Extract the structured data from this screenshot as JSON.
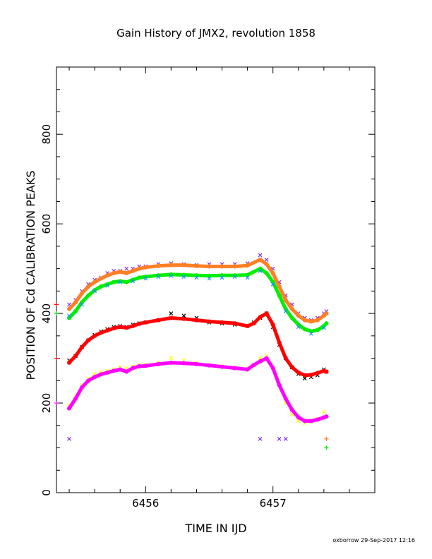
{
  "chart_data": {
    "type": "scatter",
    "title": "Gain History of JMX2, revolution 1858",
    "xlabel": "TIME IN IJD",
    "ylabel": "POSITION OF Cd CALIBRATION PEAKS",
    "xlim": [
      6455.3,
      6457.8
    ],
    "ylim": [
      0,
      950
    ],
    "x_ticks": [
      6456,
      6457
    ],
    "y_ticks": [
      0,
      200,
      400,
      600,
      800
    ],
    "grid": false,
    "footer": "oxborrow 29-Sep-2017 12:16",
    "colors": {
      "purple": "#8a2be2",
      "orange": "#ff7f24",
      "green": "#00ee00",
      "blue": "#1e90ff",
      "black": "#000000",
      "red": "#ff0000",
      "yellow": "#ffff00",
      "magenta": "#ff00ff"
    },
    "series": [
      {
        "color_key": "purple",
        "marker": "x",
        "points": [
          [
            6455.4,
            420
          ],
          [
            6455.45,
            430
          ],
          [
            6455.5,
            450
          ],
          [
            6455.55,
            465
          ],
          [
            6455.6,
            475
          ],
          [
            6455.65,
            480
          ],
          [
            6455.7,
            490
          ],
          [
            6455.75,
            495
          ],
          [
            6455.8,
            495
          ],
          [
            6455.85,
            500
          ],
          [
            6455.9,
            500
          ],
          [
            6455.95,
            505
          ],
          [
            6456.0,
            505
          ],
          [
            6456.1,
            510
          ],
          [
            6456.2,
            512
          ],
          [
            6456.3,
            510
          ],
          [
            6456.4,
            508
          ],
          [
            6456.5,
            510
          ],
          [
            6456.6,
            510
          ],
          [
            6456.7,
            510
          ],
          [
            6456.8,
            512
          ],
          [
            6456.9,
            530
          ],
          [
            6456.95,
            520
          ],
          [
            6457.0,
            500
          ],
          [
            6457.05,
            470
          ],
          [
            6457.1,
            440
          ],
          [
            6457.15,
            420
          ],
          [
            6457.2,
            400
          ],
          [
            6457.25,
            390
          ],
          [
            6457.3,
            385
          ],
          [
            6457.35,
            390
          ],
          [
            6457.4,
            400
          ],
          [
            6457.42,
            405
          ],
          [
            6455.4,
            120
          ],
          [
            6456.9,
            120
          ],
          [
            6457.05,
            120
          ],
          [
            6457.1,
            120
          ]
        ]
      },
      {
        "color_key": "orange",
        "marker": "line",
        "points": [
          [
            6455.4,
            410
          ],
          [
            6455.45,
            425
          ],
          [
            6455.5,
            445
          ],
          [
            6455.55,
            460
          ],
          [
            6455.6,
            470
          ],
          [
            6455.65,
            478
          ],
          [
            6455.7,
            485
          ],
          [
            6455.75,
            490
          ],
          [
            6455.8,
            493
          ],
          [
            6455.85,
            490
          ],
          [
            6455.9,
            495
          ],
          [
            6455.95,
            500
          ],
          [
            6456.0,
            503
          ],
          [
            6456.1,
            506
          ],
          [
            6456.2,
            508
          ],
          [
            6456.3,
            508
          ],
          [
            6456.4,
            506
          ],
          [
            6456.5,
            505
          ],
          [
            6456.6,
            505
          ],
          [
            6456.7,
            505
          ],
          [
            6456.8,
            507
          ],
          [
            6456.9,
            520
          ],
          [
            6456.95,
            510
          ],
          [
            6457.0,
            490
          ],
          [
            6457.05,
            460
          ],
          [
            6457.1,
            430
          ],
          [
            6457.15,
            410
          ],
          [
            6457.2,
            395
          ],
          [
            6457.25,
            385
          ],
          [
            6457.3,
            382
          ],
          [
            6457.35,
            385
          ],
          [
            6457.4,
            395
          ],
          [
            6457.42,
            400
          ]
        ]
      },
      {
        "color_key": "green",
        "marker": "line",
        "points": [
          [
            6455.4,
            390
          ],
          [
            6455.45,
            405
          ],
          [
            6455.5,
            425
          ],
          [
            6455.55,
            440
          ],
          [
            6455.6,
            452
          ],
          [
            6455.65,
            460
          ],
          [
            6455.7,
            465
          ],
          [
            6455.75,
            470
          ],
          [
            6455.8,
            472
          ],
          [
            6455.85,
            470
          ],
          [
            6455.9,
            475
          ],
          [
            6455.95,
            480
          ],
          [
            6456.0,
            482
          ],
          [
            6456.1,
            485
          ],
          [
            6456.2,
            487
          ],
          [
            6456.3,
            486
          ],
          [
            6456.4,
            485
          ],
          [
            6456.5,
            484
          ],
          [
            6456.6,
            485
          ],
          [
            6456.7,
            485
          ],
          [
            6456.8,
            486
          ],
          [
            6456.9,
            500
          ],
          [
            6456.95,
            490
          ],
          [
            6457.0,
            470
          ],
          [
            6457.05,
            440
          ],
          [
            6457.1,
            410
          ],
          [
            6457.15,
            390
          ],
          [
            6457.2,
            375
          ],
          [
            6457.25,
            365
          ],
          [
            6457.3,
            360
          ],
          [
            6457.35,
            363
          ],
          [
            6457.4,
            372
          ],
          [
            6457.42,
            378
          ]
        ]
      },
      {
        "color_key": "blue",
        "marker": "x",
        "points": [
          [
            6455.4,
            395
          ],
          [
            6455.5,
            420
          ],
          [
            6455.6,
            450
          ],
          [
            6455.7,
            462
          ],
          [
            6455.8,
            470
          ],
          [
            6455.9,
            472
          ],
          [
            6456.0,
            478
          ],
          [
            6456.1,
            482
          ],
          [
            6456.2,
            484
          ],
          [
            6456.3,
            482
          ],
          [
            6456.4,
            480
          ],
          [
            6456.5,
            478
          ],
          [
            6456.6,
            480
          ],
          [
            6456.7,
            482
          ],
          [
            6456.8,
            480
          ],
          [
            6456.9,
            495
          ],
          [
            6457.0,
            465
          ],
          [
            6457.1,
            405
          ],
          [
            6457.2,
            370
          ],
          [
            6457.3,
            355
          ],
          [
            6457.4,
            368
          ]
        ]
      },
      {
        "color_key": "black",
        "marker": "x",
        "points": [
          [
            6455.4,
            295
          ],
          [
            6455.45,
            305
          ],
          [
            6455.5,
            325
          ],
          [
            6455.55,
            340
          ],
          [
            6455.6,
            352
          ],
          [
            6455.65,
            360
          ],
          [
            6455.7,
            365
          ],
          [
            6455.75,
            370
          ],
          [
            6455.8,
            372
          ],
          [
            6455.85,
            370
          ],
          [
            6455.9,
            375
          ],
          [
            6455.95,
            378
          ],
          [
            6456.0,
            380
          ],
          [
            6456.1,
            385
          ],
          [
            6456.2,
            400
          ],
          [
            6456.3,
            395
          ],
          [
            6456.4,
            390
          ],
          [
            6456.5,
            380
          ],
          [
            6456.6,
            378
          ],
          [
            6456.7,
            375
          ],
          [
            6456.8,
            372
          ],
          [
            6456.85,
            380
          ],
          [
            6456.9,
            390
          ],
          [
            6456.95,
            400
          ],
          [
            6457.0,
            370
          ],
          [
            6457.05,
            330
          ],
          [
            6457.1,
            300
          ],
          [
            6457.15,
            280
          ],
          [
            6457.2,
            265
          ],
          [
            6457.25,
            255
          ],
          [
            6457.3,
            258
          ],
          [
            6457.35,
            262
          ],
          [
            6457.4,
            275
          ],
          [
            6457.42,
            270
          ]
        ]
      },
      {
        "color_key": "red",
        "marker": "line",
        "points": [
          [
            6455.4,
            290
          ],
          [
            6455.45,
            305
          ],
          [
            6455.5,
            325
          ],
          [
            6455.55,
            340
          ],
          [
            6455.6,
            350
          ],
          [
            6455.65,
            357
          ],
          [
            6455.7,
            362
          ],
          [
            6455.75,
            367
          ],
          [
            6455.8,
            370
          ],
          [
            6455.85,
            368
          ],
          [
            6455.9,
            372
          ],
          [
            6455.95,
            377
          ],
          [
            6456.0,
            380
          ],
          [
            6456.1,
            385
          ],
          [
            6456.2,
            390
          ],
          [
            6456.3,
            388
          ],
          [
            6456.4,
            385
          ],
          [
            6456.5,
            382
          ],
          [
            6456.6,
            380
          ],
          [
            6456.7,
            378
          ],
          [
            6456.8,
            372
          ],
          [
            6456.85,
            378
          ],
          [
            6456.9,
            392
          ],
          [
            6456.95,
            400
          ],
          [
            6457.0,
            375
          ],
          [
            6457.05,
            335
          ],
          [
            6457.1,
            300
          ],
          [
            6457.15,
            280
          ],
          [
            6457.2,
            268
          ],
          [
            6457.25,
            262
          ],
          [
            6457.3,
            263
          ],
          [
            6457.35,
            267
          ],
          [
            6457.4,
            272
          ],
          [
            6457.42,
            270
          ]
        ]
      },
      {
        "color_key": "yellow",
        "marker": "x",
        "points": [
          [
            6455.4,
            195
          ],
          [
            6455.45,
            215
          ],
          [
            6455.5,
            240
          ],
          [
            6455.55,
            255
          ],
          [
            6455.6,
            265
          ],
          [
            6455.65,
            270
          ],
          [
            6455.7,
            272
          ],
          [
            6455.75,
            275
          ],
          [
            6455.8,
            280
          ],
          [
            6455.85,
            278
          ],
          [
            6455.9,
            282
          ],
          [
            6455.95,
            285
          ],
          [
            6456.0,
            285
          ],
          [
            6456.1,
            290
          ],
          [
            6456.2,
            300
          ],
          [
            6456.3,
            295
          ],
          [
            6456.4,
            290
          ],
          [
            6456.5,
            285
          ],
          [
            6456.6,
            282
          ],
          [
            6456.7,
            280
          ],
          [
            6456.8,
            278
          ],
          [
            6456.85,
            285
          ],
          [
            6456.9,
            300
          ],
          [
            6456.95,
            305
          ],
          [
            6457.0,
            280
          ],
          [
            6457.05,
            240
          ],
          [
            6457.1,
            200
          ],
          [
            6457.15,
            175
          ],
          [
            6457.2,
            160
          ],
          [
            6457.25,
            155
          ],
          [
            6457.3,
            158
          ],
          [
            6457.35,
            165
          ],
          [
            6457.4,
            180
          ],
          [
            6457.42,
            170
          ]
        ]
      },
      {
        "color_key": "magenta",
        "marker": "line",
        "points": [
          [
            6455.4,
            188
          ],
          [
            6455.45,
            210
          ],
          [
            6455.5,
            235
          ],
          [
            6455.55,
            250
          ],
          [
            6455.6,
            258
          ],
          [
            6455.65,
            264
          ],
          [
            6455.7,
            268
          ],
          [
            6455.75,
            272
          ],
          [
            6455.8,
            275
          ],
          [
            6455.85,
            270
          ],
          [
            6455.9,
            278
          ],
          [
            6455.95,
            282
          ],
          [
            6456.0,
            283
          ],
          [
            6456.1,
            287
          ],
          [
            6456.2,
            290
          ],
          [
            6456.3,
            289
          ],
          [
            6456.4,
            287
          ],
          [
            6456.5,
            284
          ],
          [
            6456.6,
            281
          ],
          [
            6456.7,
            278
          ],
          [
            6456.8,
            275
          ],
          [
            6456.85,
            285
          ],
          [
            6456.9,
            293
          ],
          [
            6456.95,
            300
          ],
          [
            6457.0,
            278
          ],
          [
            6457.05,
            240
          ],
          [
            6457.1,
            210
          ],
          [
            6457.15,
            185
          ],
          [
            6457.2,
            168
          ],
          [
            6457.25,
            160
          ],
          [
            6457.3,
            160
          ],
          [
            6457.35,
            163
          ],
          [
            6457.4,
            168
          ],
          [
            6457.42,
            170
          ]
        ]
      }
    ],
    "reference_markers": [
      {
        "x": 6455.3,
        "y": 420,
        "color_key": "red"
      },
      {
        "x": 6455.3,
        "y": 400,
        "color_key": "green"
      },
      {
        "x": 6455.3,
        "y": 300,
        "color_key": "red"
      },
      {
        "x": 6455.3,
        "y": 200,
        "color_key": "magenta"
      },
      {
        "x": 6457.42,
        "y": 120,
        "color_key": "orange"
      },
      {
        "x": 6457.42,
        "y": 100,
        "color_key": "green"
      }
    ]
  }
}
